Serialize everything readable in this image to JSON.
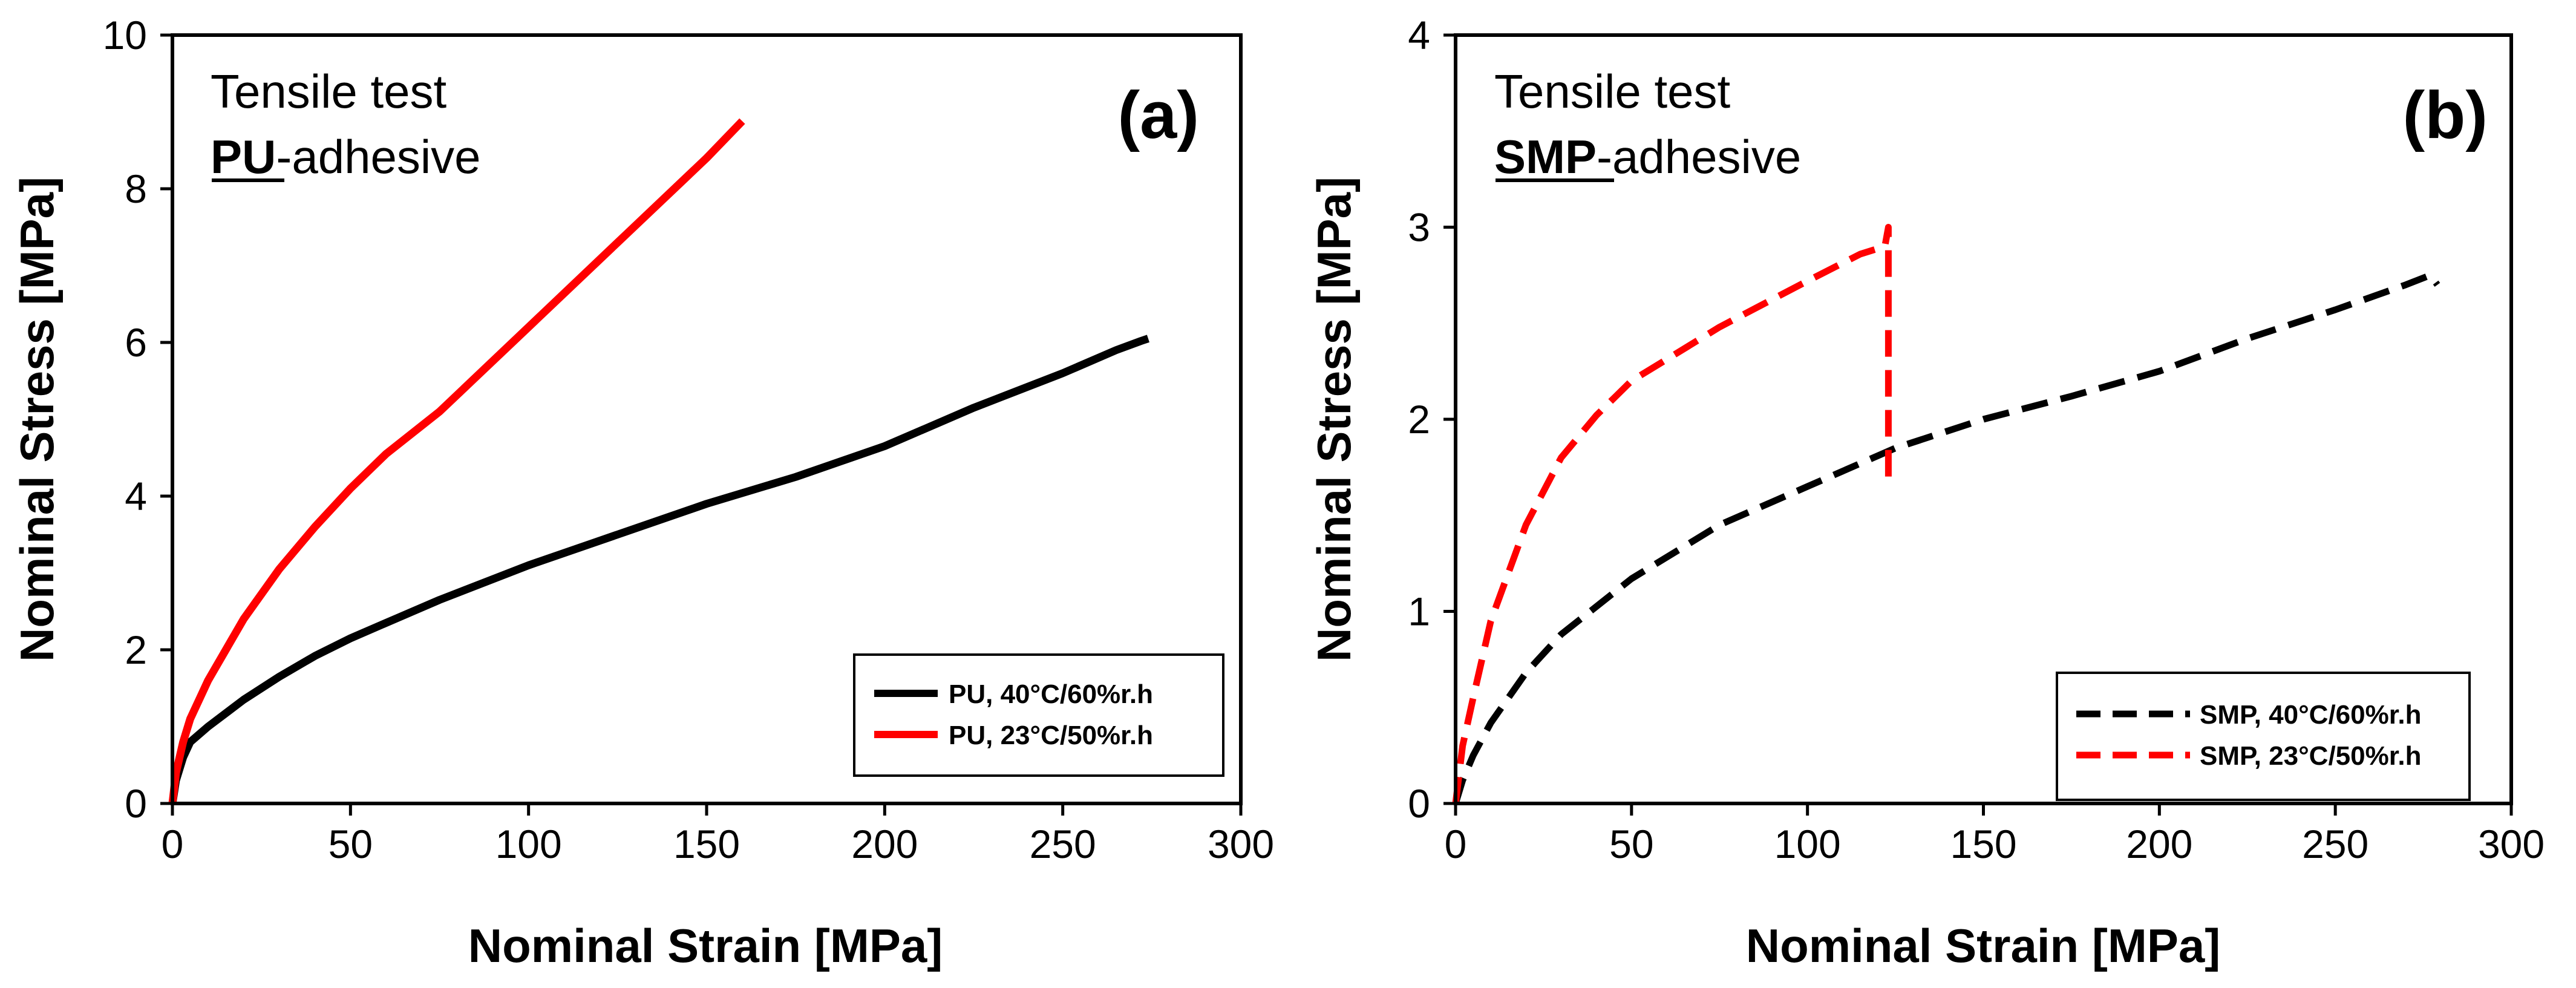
{
  "chart_data": [
    {
      "type": "line",
      "panel_label": "(a)",
      "annotation": {
        "line1": "Tensile test",
        "line2_bold": "PU",
        "line2_rest": "-adhesive"
      },
      "xlabel": "Nominal Strain [MPa]",
      "ylabel": "Nominal Stress [MPa]",
      "xlim": [
        0,
        300
      ],
      "ylim": [
        0,
        10
      ],
      "xticks": [
        0,
        50,
        100,
        150,
        200,
        250,
        300
      ],
      "yticks": [
        0,
        2,
        4,
        6,
        8,
        10
      ],
      "x_tick_labels": [
        "0",
        "50",
        "100",
        "150",
        "200",
        "250",
        "300"
      ],
      "y_tick_labels": [
        "0",
        "2",
        "4",
        "6",
        "8",
        "10"
      ],
      "legend_position": "bottom-right",
      "series": [
        {
          "name": "PU, 40°C/60%r.h",
          "color": "#000000",
          "dash": "solid",
          "x": [
            0,
            1,
            3,
            5,
            10,
            20,
            30,
            40,
            50,
            60,
            75,
            100,
            125,
            150,
            175,
            200,
            225,
            250,
            265,
            272,
            274
          ],
          "y": [
            0,
            0.3,
            0.6,
            0.8,
            1.0,
            1.35,
            1.65,
            1.92,
            2.15,
            2.35,
            2.65,
            3.1,
            3.5,
            3.9,
            4.25,
            4.65,
            5.15,
            5.6,
            5.9,
            6.02,
            6.05
          ]
        },
        {
          "name": "PU, 23°C/50%r.h",
          "color": "#ff0000",
          "dash": "solid",
          "x": [
            0,
            1,
            3,
            5,
            10,
            20,
            30,
            40,
            50,
            60,
            75,
            100,
            125,
            150,
            160
          ],
          "y": [
            0,
            0.4,
            0.8,
            1.1,
            1.6,
            2.4,
            3.05,
            3.6,
            4.1,
            4.55,
            5.1,
            6.2,
            7.3,
            8.4,
            8.88
          ]
        }
      ]
    },
    {
      "type": "line",
      "panel_label": "(b)",
      "annotation": {
        "line1": "Tensile test",
        "line2_bold": "SMP",
        "line2_rest": "-adhesive"
      },
      "xlabel": "Nominal Strain [MPa]",
      "ylabel": "Nominal Stress [MPa]",
      "xlim": [
        0,
        300
      ],
      "ylim": [
        0,
        4
      ],
      "xticks": [
        0,
        50,
        100,
        150,
        200,
        250,
        300
      ],
      "yticks": [
        0,
        1,
        2,
        3,
        4
      ],
      "x_tick_labels": [
        "0",
        "50",
        "100",
        "150",
        "200",
        "250",
        "300"
      ],
      "y_tick_labels": [
        "0",
        "1",
        "2",
        "3",
        "4"
      ],
      "legend_position": "bottom-right",
      "series": [
        {
          "name": "SMP, 40°C/60%r.h",
          "color": "#000000",
          "dash": "dashed",
          "x": [
            0,
            2,
            5,
            10,
            20,
            30,
            50,
            75,
            100,
            125,
            150,
            175,
            200,
            225,
            250,
            270,
            277,
            279
          ],
          "y": [
            0,
            0.12,
            0.25,
            0.42,
            0.68,
            0.88,
            1.17,
            1.45,
            1.65,
            1.85,
            2.0,
            2.12,
            2.25,
            2.42,
            2.57,
            2.7,
            2.75,
            2.7
          ]
        },
        {
          "name": "SMP, 23°C/50%r.h",
          "color": "#ff0000",
          "dash": "dashed",
          "x": [
            0,
            2,
            5,
            10,
            20,
            30,
            40,
            50,
            75,
            100,
            115,
            122,
            123,
            123,
            123
          ],
          "y": [
            0,
            0.3,
            0.55,
            0.95,
            1.45,
            1.8,
            2.02,
            2.2,
            2.48,
            2.72,
            2.86,
            2.9,
            3.0,
            2.3,
            1.65
          ]
        }
      ]
    }
  ]
}
